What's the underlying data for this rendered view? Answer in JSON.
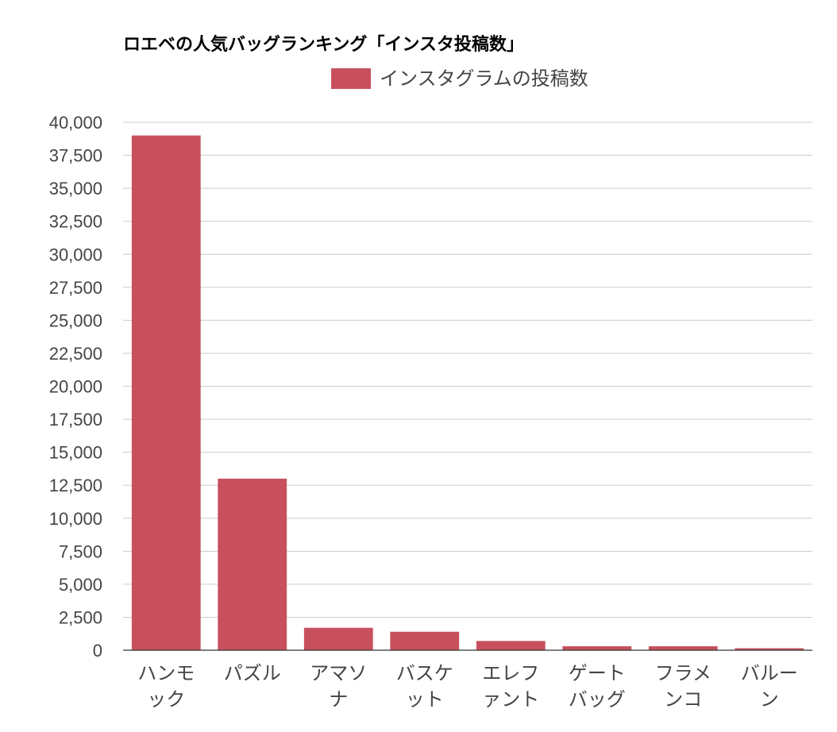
{
  "chart_data": {
    "type": "bar",
    "title": "ロエベの人気バッグランキング「インスタ投稿数」",
    "legend": {
      "position": "top",
      "entries": [
        "インスタグラムの投稿数"
      ]
    },
    "categories": [
      [
        "ハンモ",
        "ック"
      ],
      [
        "パズル"
      ],
      [
        "アマソ",
        "ナ"
      ],
      [
        "バスケ",
        "ット"
      ],
      [
        "エレフ",
        "ァント"
      ],
      [
        "ゲート",
        "バッグ"
      ],
      [
        "フラメ",
        "ンコ"
      ],
      [
        "バルー",
        "ン"
      ]
    ],
    "series": [
      {
        "name": "インスタグラムの投稿数",
        "color": "#c8505e",
        "values": [
          39000,
          13000,
          1700,
          1400,
          700,
          300,
          300,
          150
        ]
      }
    ],
    "ylim": [
      0,
      40000
    ],
    "yticks": [
      0,
      2500,
      5000,
      7500,
      10000,
      12500,
      15000,
      17500,
      20000,
      22500,
      25000,
      27500,
      30000,
      32500,
      35000,
      37500,
      40000
    ],
    "ytick_labels": [
      "0",
      "2,500",
      "5,000",
      "7,500",
      "10,000",
      "12,500",
      "15,000",
      "17,500",
      "20,000",
      "22,500",
      "25,000",
      "27,500",
      "30,000",
      "32,500",
      "35,000",
      "37,500",
      "40,000"
    ],
    "grid": true,
    "xlabel": "",
    "ylabel": ""
  }
}
